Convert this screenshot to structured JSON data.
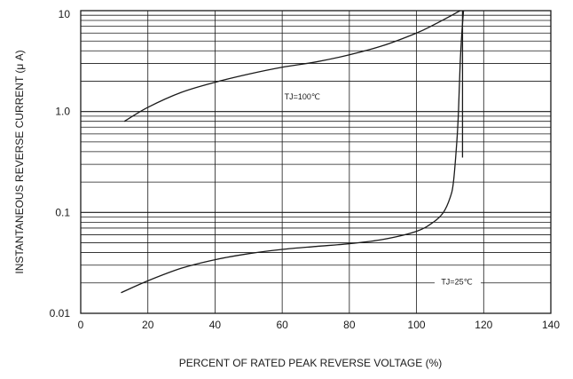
{
  "chart_data": {
    "type": "line",
    "xlabel": "PERCENT OF RATED PEAK REVERSE VOLTAGE (%)",
    "ylabel": "INSTANTANEOUS REVERSE CURRENT (μ A)",
    "xlim": [
      0,
      140
    ],
    "ylim": [
      0.01,
      10
    ],
    "yscale": "log",
    "grid": true,
    "x_ticks": [
      0,
      20,
      40,
      60,
      80,
      100,
      120,
      140
    ],
    "x_tick_labels": [
      "0",
      "20",
      "40",
      "60",
      "80",
      "100",
      "120",
      "140"
    ],
    "y_ticks": [
      0.01,
      0.1,
      1.0,
      10
    ],
    "y_tick_labels": [
      "0.01",
      "0.1",
      "1.0",
      "10"
    ],
    "series": [
      {
        "name": "TJ=100℃",
        "x": [
          13,
          20,
          30,
          40,
          50,
          60,
          70,
          80,
          90,
          100,
          105,
          110,
          113
        ],
        "y": [
          0.8,
          1.1,
          1.55,
          1.95,
          2.35,
          2.75,
          3.1,
          3.65,
          4.5,
          6.0,
          7.2,
          8.8,
          10
        ]
      },
      {
        "name": "TJ=25℃",
        "x": [
          12,
          20,
          30,
          40,
          50,
          60,
          70,
          80,
          90,
          100,
          105,
          108,
          110,
          111,
          112,
          112.5,
          113,
          113.5,
          114
        ],
        "y": [
          0.016,
          0.021,
          0.028,
          0.034,
          0.039,
          0.043,
          0.046,
          0.049,
          0.054,
          0.065,
          0.08,
          0.1,
          0.14,
          0.2,
          0.5,
          1.0,
          3.0,
          6.0,
          10
        ]
      }
    ],
    "annotations": [
      {
        "text": "TJ=100℃",
        "x": 66,
        "y": 1.4
      },
      {
        "text": "TJ=25℃",
        "x": 112,
        "y": 0.0205
      }
    ]
  }
}
